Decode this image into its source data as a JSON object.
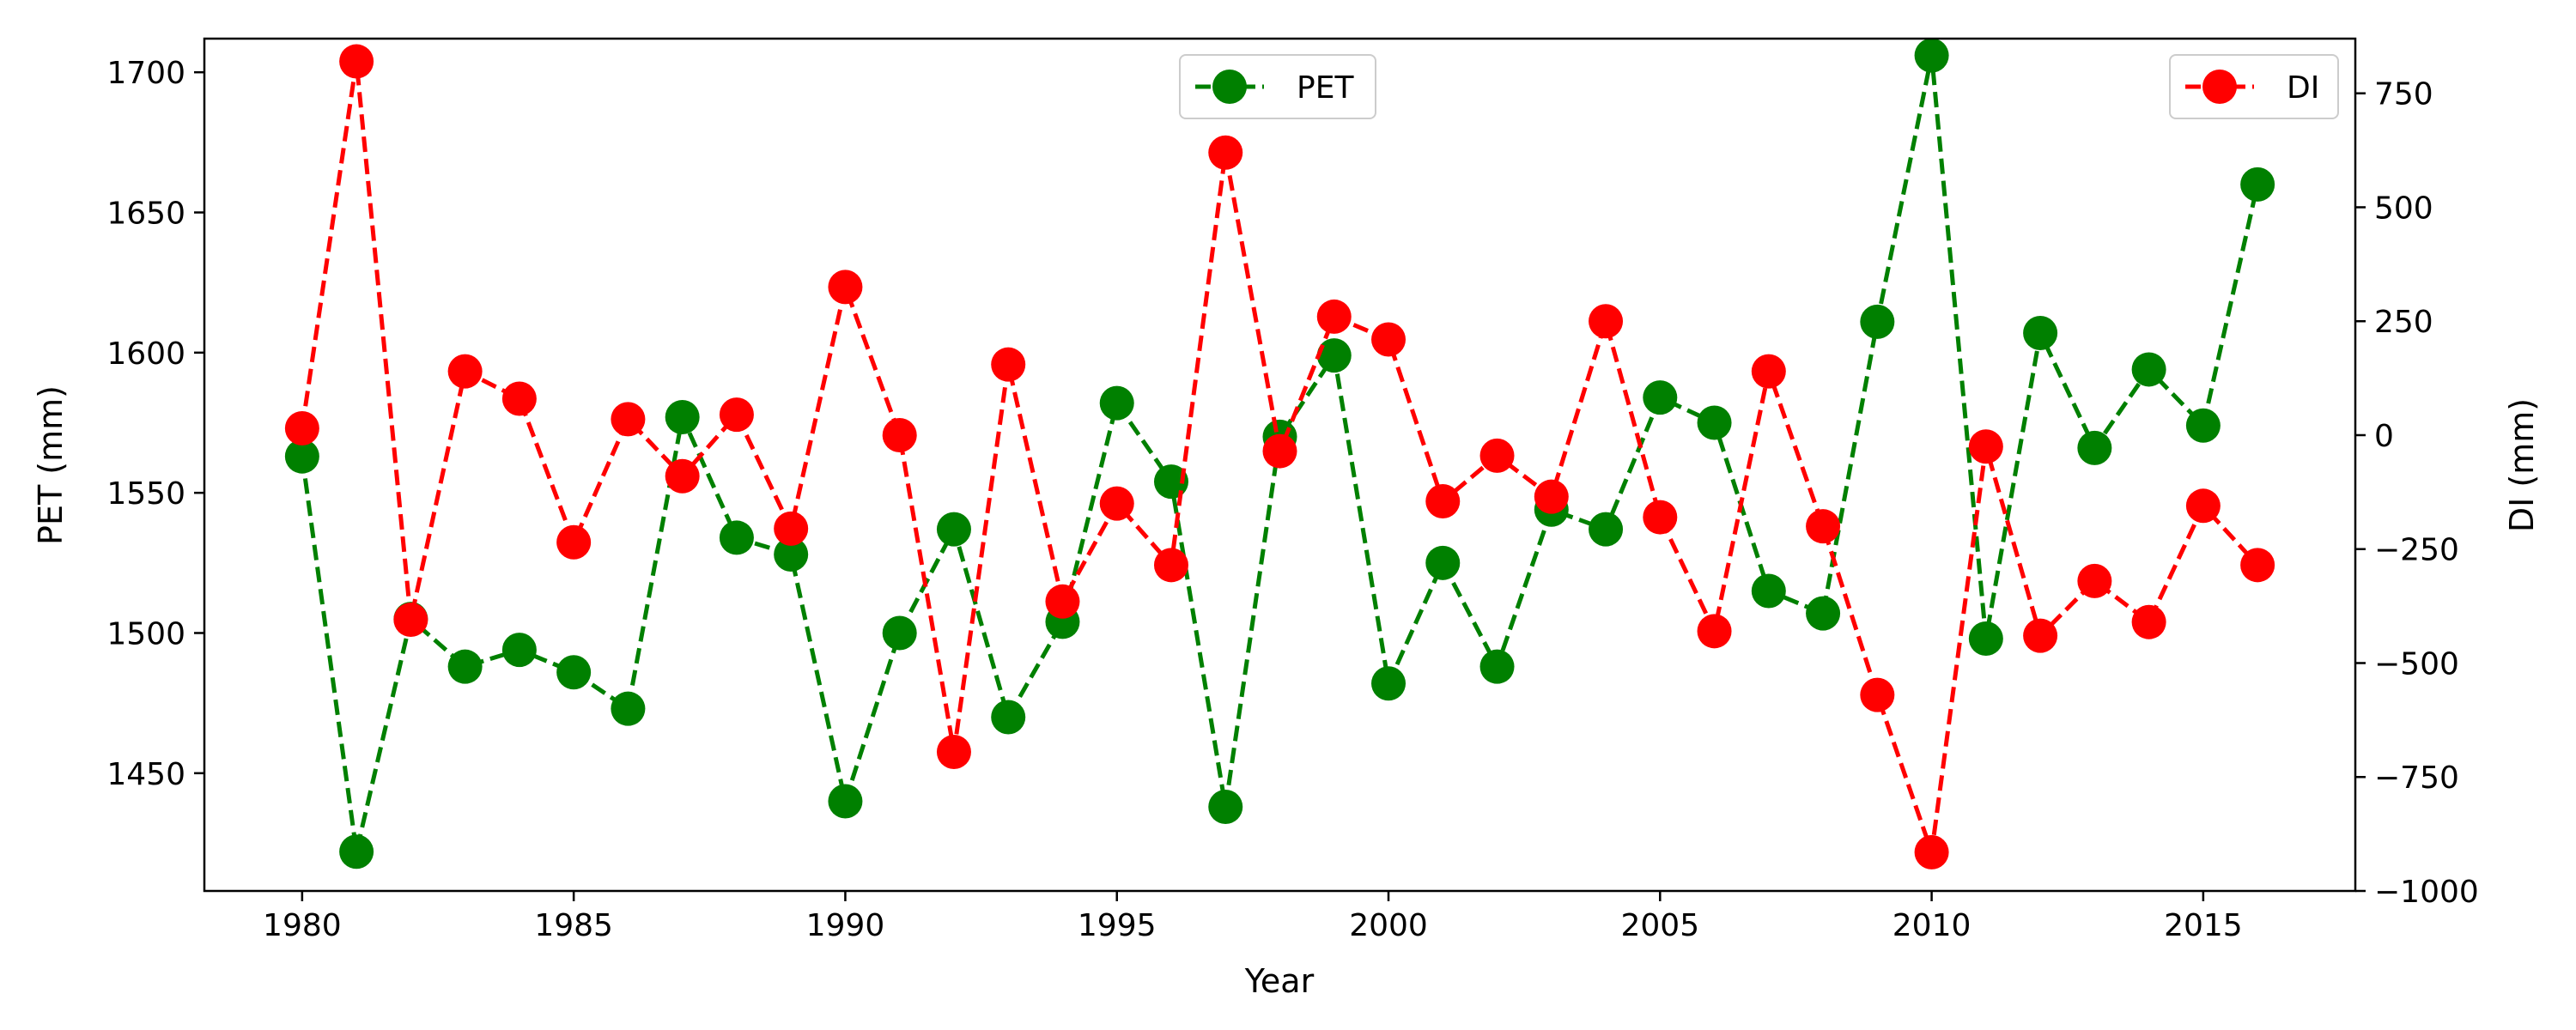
{
  "chart_data": {
    "type": "line",
    "xlabel": "Year",
    "ylabel": "PET (mm)",
    "y2label": "DI (mm)",
    "xlim": [
      1978.2,
      2017.8
    ],
    "ylim": [
      1408,
      1712
    ],
    "y2lim": [
      -1000,
      870
    ],
    "x_ticks": [
      1980,
      1985,
      1990,
      1995,
      2000,
      2005,
      2010,
      2015
    ],
    "y_ticks": [
      1450,
      1500,
      1550,
      1600,
      1650,
      1700
    ],
    "y2_ticks": [
      -1000,
      -750,
      -500,
      -250,
      0,
      250,
      500,
      750
    ],
    "x": [
      1980,
      1981,
      1982,
      1983,
      1984,
      1985,
      1986,
      1987,
      1988,
      1989,
      1990,
      1991,
      1992,
      1993,
      1994,
      1995,
      1996,
      1997,
      1998,
      1999,
      2000,
      2001,
      2002,
      2003,
      2004,
      2005,
      2006,
      2007,
      2008,
      2009,
      2010,
      2011,
      2012,
      2013,
      2014,
      2015,
      2016
    ],
    "series": [
      {
        "name": "PET",
        "axis": "left",
        "color": "#008000",
        "style": "dashed line with circle markers",
        "values": [
          1563,
          1422,
          1505,
          1488,
          1494,
          1486,
          1473,
          1577,
          1534,
          1528,
          1440,
          1500,
          1537,
          1470,
          1504,
          1582,
          1554,
          1438,
          1570,
          1599,
          1482,
          1525,
          1488,
          1544,
          1537,
          1584,
          1575,
          1515,
          1507,
          1611,
          1706,
          1498,
          1607,
          1566,
          1594,
          1574,
          1660
        ]
      },
      {
        "name": "DI",
        "axis": "right",
        "color": "#ff0000",
        "style": "dashed line with circle markers",
        "values": [
          15,
          820,
          -405,
          140,
          80,
          -235,
          35,
          -90,
          45,
          -205,
          325,
          0,
          -695,
          155,
          -365,
          -150,
          -285,
          620,
          -35,
          260,
          210,
          -145,
          -45,
          -135,
          250,
          -180,
          -430,
          140,
          -200,
          -570,
          -915,
          -25,
          -440,
          -320,
          -410,
          -155,
          -285
        ]
      }
    ],
    "legends": [
      {
        "position": "top-center",
        "entries": [
          "PET"
        ]
      },
      {
        "position": "top-right",
        "entries": [
          "DI"
        ]
      }
    ],
    "grid": false
  }
}
